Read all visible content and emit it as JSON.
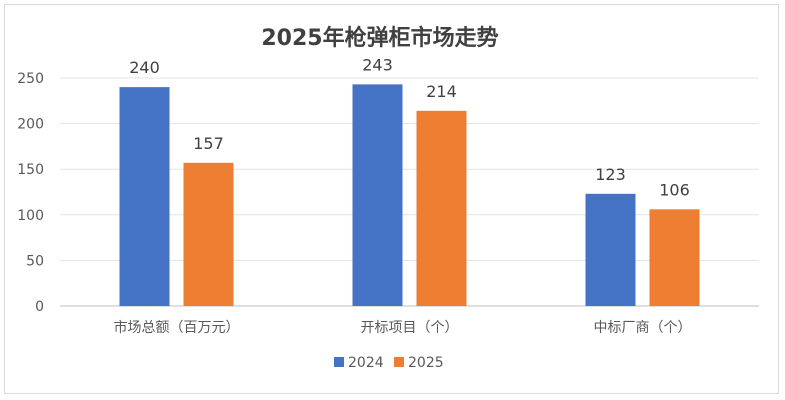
{
  "chart_data": {
    "type": "bar",
    "title": "2025年枪弹柜市场走势",
    "categories": [
      "市场总额（百万元）",
      "开标项目（个）",
      "中标厂商（个）"
    ],
    "series": [
      {
        "name": "2024",
        "values": [
          240,
          243,
          123
        ],
        "color": "#4472C4"
      },
      {
        "name": "2025",
        "values": [
          157,
          214,
          106
        ],
        "color": "#ED7D31"
      }
    ],
    "yticks": [
      0,
      50,
      100,
      150,
      200,
      250
    ],
    "ylim": [
      0,
      250
    ],
    "grid": true,
    "legend_position": "bottom"
  }
}
